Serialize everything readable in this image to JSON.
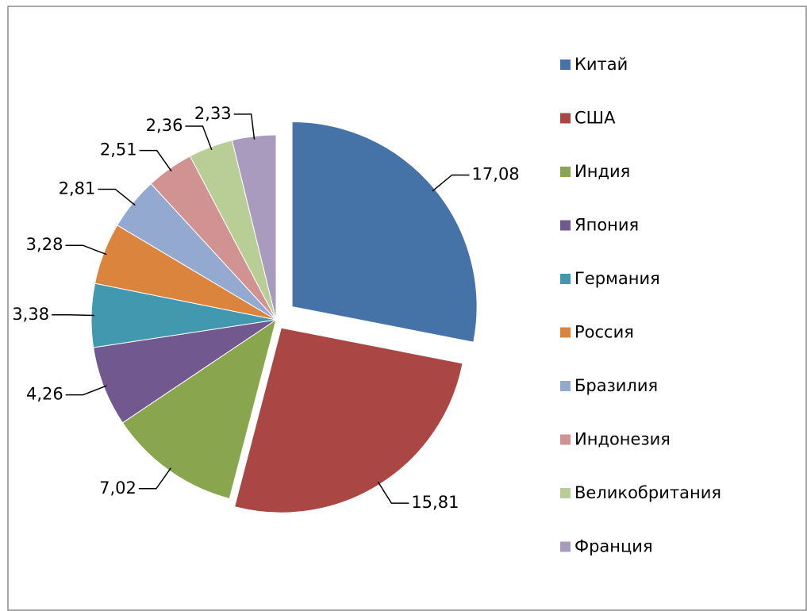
{
  "chart_data": {
    "type": "pie",
    "categories": [
      "Китай",
      "США",
      "Индия",
      "Япония",
      "Германия",
      "Россия",
      "Бразилия",
      "Индонезия",
      "Великобритания",
      "Франция"
    ],
    "values": [
      17.08,
      15.81,
      7.02,
      4.26,
      3.38,
      3.28,
      2.81,
      2.51,
      2.36,
      2.33
    ],
    "value_labels": [
      "17,08",
      "15,81",
      "7,02",
      "4,26",
      "3,38",
      "3,28",
      "2,81",
      "2,51",
      "2,36",
      "2,33"
    ],
    "colors": [
      "#4572A7",
      "#AA4643",
      "#89A54E",
      "#71588F",
      "#4198AF",
      "#DB843D",
      "#93A9CF",
      "#D19392",
      "#B9CD96",
      "#A99BBD"
    ],
    "legend": "right"
  }
}
